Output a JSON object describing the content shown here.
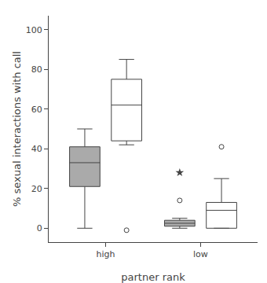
{
  "chart_data": {
    "type": "box",
    "categories": [
      "high",
      "low"
    ],
    "xlabel": "partner rank",
    "ylabel": "% sexual interactions with call",
    "ylim": [
      -7,
      107
    ],
    "yticks": [
      0,
      20,
      40,
      60,
      80,
      100
    ],
    "grid": false,
    "line_color": "#444444",
    "series": [
      {
        "color": "#aaaaaa",
        "q1": [
          21,
          1
        ],
        "median": [
          33,
          2.5
        ],
        "q3": [
          41,
          4
        ],
        "whislo": [
          0,
          0
        ],
        "whishi": [
          50,
          5
        ],
        "fliers": [
          [],
          [
            14
          ]
        ],
        "star_fliers": [
          [],
          [
            28
          ]
        ]
      },
      {
        "color": "#ffffff",
        "q1": [
          44,
          0
        ],
        "median": [
          62,
          9
        ],
        "q3": [
          75,
          13
        ],
        "whislo": [
          42,
          0
        ],
        "whishi": [
          85,
          25
        ],
        "fliers": [
          [
            -1
          ],
          [
            41
          ]
        ],
        "star_fliers": [
          [],
          []
        ]
      }
    ]
  }
}
